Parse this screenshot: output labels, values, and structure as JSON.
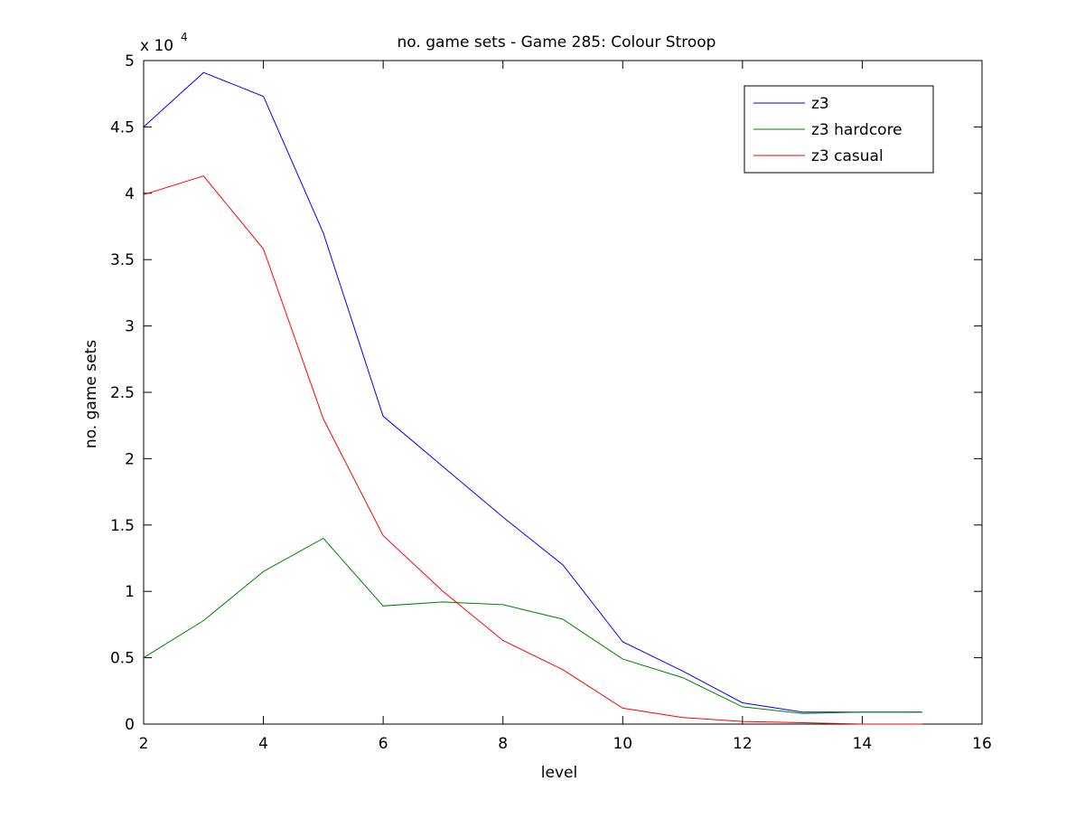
{
  "chart_data": {
    "type": "line",
    "title": "no. game sets - Game 285: Colour Stroop",
    "xlabel": "level",
    "ylabel": "no. game sets",
    "y_multiplier_label": "x 10",
    "y_multiplier_exponent": "4",
    "xlim": [
      2,
      16
    ],
    "ylim": [
      0,
      5
    ],
    "x_ticks": [
      2,
      4,
      6,
      8,
      10,
      12,
      14,
      16
    ],
    "x_tick_labels": [
      "2",
      "4",
      "6",
      "8",
      "10",
      "12",
      "14",
      "16"
    ],
    "y_ticks": [
      0,
      0.5,
      1,
      1.5,
      2,
      2.5,
      3,
      3.5,
      4,
      4.5,
      5
    ],
    "y_tick_labels": [
      "0",
      "0.5",
      "1",
      "1.5",
      "2",
      "2.5",
      "3",
      "3.5",
      "4",
      "4.5",
      "5"
    ],
    "grid": false,
    "legend_position": "top-right",
    "x": [
      2,
      3,
      4,
      5,
      6,
      7,
      8,
      9,
      10,
      11,
      12,
      13,
      14,
      15
    ],
    "series": [
      {
        "name": "z3",
        "color": "#0000ff",
        "values": [
          4.5,
          4.91,
          4.73,
          3.7,
          2.32,
          1.94,
          1.56,
          1.2,
          0.62,
          0.4,
          0.16,
          0.09,
          0.09,
          0.09
        ]
      },
      {
        "name": "z3 hardcore",
        "color": "#008000",
        "values": [
          0.5,
          0.78,
          1.15,
          1.4,
          0.89,
          0.92,
          0.9,
          0.79,
          0.49,
          0.35,
          0.13,
          0.08,
          0.09,
          0.09
        ]
      },
      {
        "name": "z3 casual",
        "color": "#ff0000",
        "values": [
          3.99,
          4.13,
          3.58,
          2.3,
          1.42,
          1.0,
          0.63,
          0.41,
          0.12,
          0.05,
          0.02,
          0.01,
          0.0,
          0.0
        ]
      }
    ]
  }
}
